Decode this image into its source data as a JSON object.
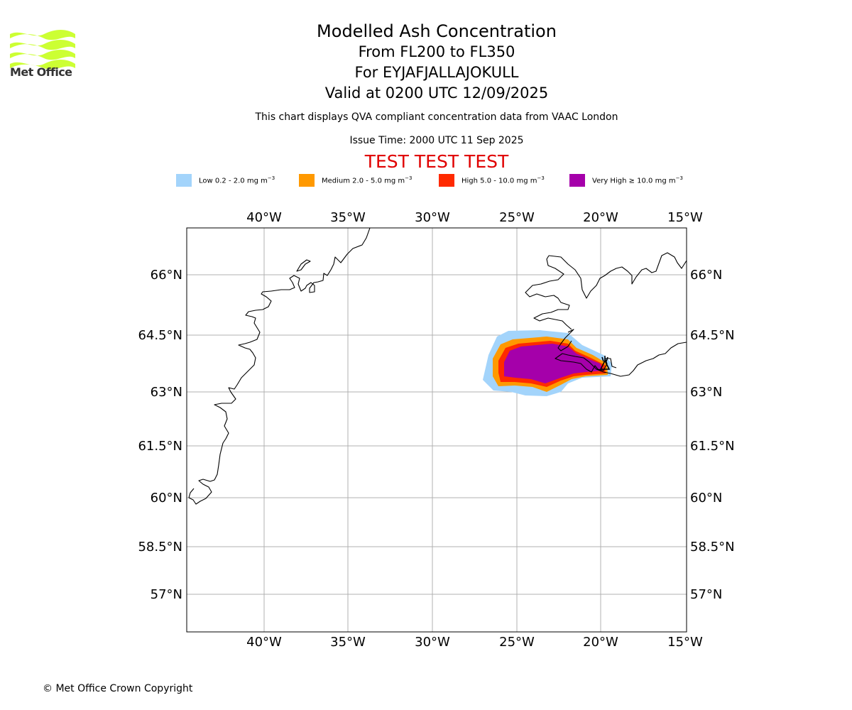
{
  "header": {
    "logo_icon": "met-office-wave-logo-icon",
    "logo_text": "Met Office",
    "logo_color": "#ccff33",
    "title": "Modelled Ash Concentration",
    "level_range": "From FL200 to FL350",
    "volcano": "For EYJAFJALLAJOKULL",
    "valid_time": "Valid at 0200 UTC 12/09/2025",
    "description": "This chart displays QVA compliant concentration data from VAAC London",
    "issue_time": "Issue Time: 2000 UTC 11 Sep 2025",
    "test_banner": "TEST TEST TEST",
    "test_banner_color": "#e00000"
  },
  "legend": [
    {
      "label_prefix": "Low 0.2 - 2.0 mg m",
      "label_sup": "−3",
      "color": "#a3d4fb"
    },
    {
      "label_prefix": "Medium 2.0 - 5.0 mg m",
      "label_sup": "−3",
      "color": "#ff9900"
    },
    {
      "label_prefix": "High 5.0 - 10.0 mg m",
      "label_sup": "−3",
      "color": "#ff2a00"
    },
    {
      "label_prefix": "Very High ≥ 10.0 mg m",
      "label_sup": "−3",
      "color": "#a500aa"
    }
  ],
  "map": {
    "lon_ticks": [
      "40°W",
      "35°W",
      "30°W",
      "25°W",
      "20°W",
      "15°W"
    ],
    "lat_ticks": [
      "66°N",
      "64.5°N",
      "63°N",
      "61.5°N",
      "60°N",
      "58.5°N",
      "57°N"
    ],
    "volcano_marker_icon": "volcano-marker-icon",
    "gridline_color": "#b0b0b0",
    "coastline_color": "#000000"
  },
  "footer": {
    "copyright": "© Met Office Crown Copyright"
  }
}
